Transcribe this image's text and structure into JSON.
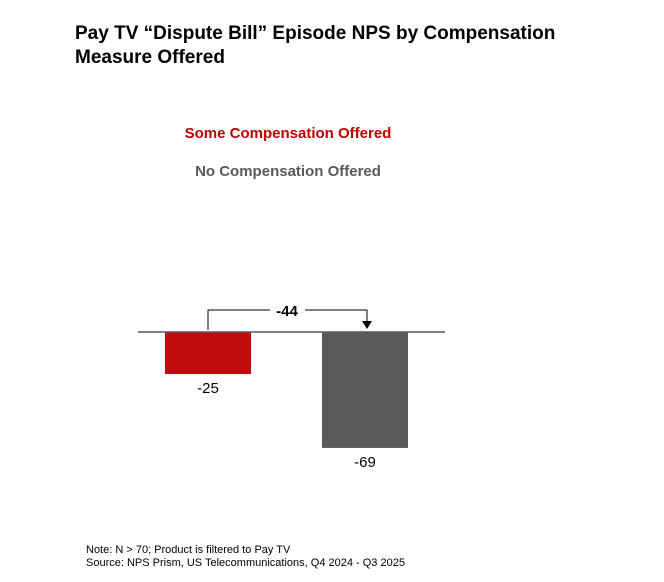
{
  "chart_data": {
    "type": "bar",
    "title": "Pay TV “Dispute Bill” Episode NPS by Compensation Measure Offered",
    "categories": [
      "Some Compensation Offered",
      "No Compensation Offered"
    ],
    "values": [
      -25,
      -69
    ],
    "data_labels": [
      "-25",
      "-69"
    ],
    "colors": [
      "#c00b0f",
      "#5a5a5a"
    ],
    "legend": [
      "Some Compensation Offered",
      "No Compensation Offered"
    ],
    "legend_colors": [
      "#c00000",
      "#595959"
    ],
    "legend_position": "top",
    "annotation": {
      "text": "-44",
      "from": 0,
      "to": 1
    },
    "xlabel": "",
    "ylabel": "",
    "ylim": [
      -75,
      0
    ],
    "grid": false
  },
  "footer": {
    "note": "Note: N > 70; Product is filtered to Pay TV",
    "source": "Source: NPS Prism, US Telecommunications, Q4 2024 - Q3 2025"
  }
}
